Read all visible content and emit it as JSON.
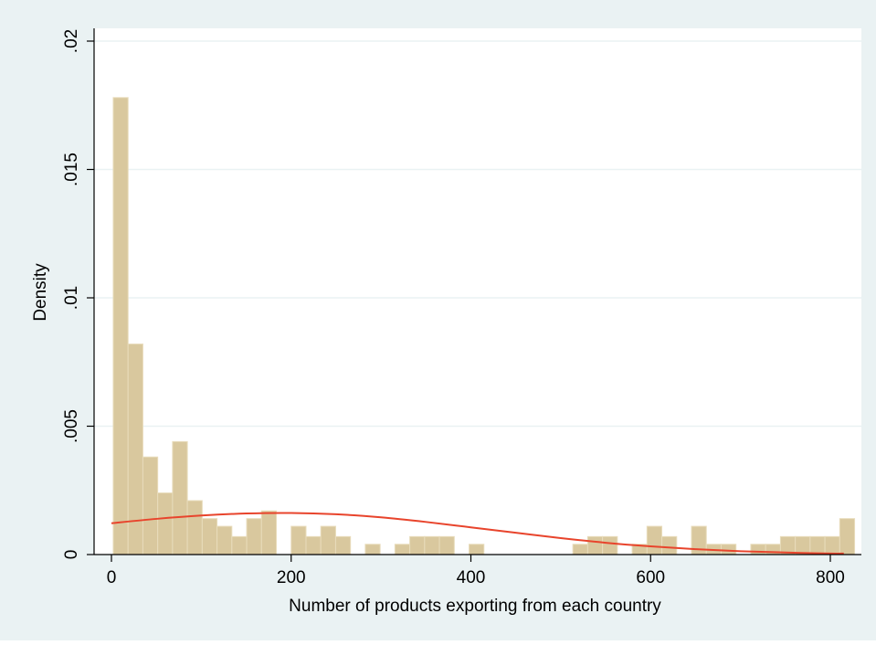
{
  "chart_data": {
    "type": "bar",
    "xlabel": "Number of products exporting from each country",
    "ylabel": "Density",
    "xlim": [
      0,
      820
    ],
    "ylim": [
      0,
      0.02
    ],
    "x_ticks": [
      {
        "value": 0,
        "label": "0"
      },
      {
        "value": 200,
        "label": "200"
      },
      {
        "value": 400,
        "label": "400"
      },
      {
        "value": 600,
        "label": "600"
      },
      {
        "value": 800,
        "label": "800"
      }
    ],
    "y_ticks": [
      {
        "value": 0,
        "label": "0"
      },
      {
        "value": 0.005,
        "label": ".005"
      },
      {
        "value": 0.01,
        "label": ".01"
      },
      {
        "value": 0.015,
        "label": ".015"
      },
      {
        "value": 0.02,
        "label": ".02"
      }
    ],
    "bin_width": 16.5,
    "bin_start": 2,
    "histogram_density": [
      0.0178,
      0.0082,
      0.0038,
      0.0024,
      0.0044,
      0.0021,
      0.0014,
      0.0011,
      0.0007,
      0.0014,
      0.0017,
      0,
      0.0011,
      0.0007,
      0.0011,
      0.0007,
      0,
      0.0004,
      0,
      0.0004,
      0.0007,
      0.0007,
      0.0007,
      0,
      0.0004,
      0,
      0,
      0,
      0,
      0,
      0,
      0.0004,
      0.0007,
      0.0007,
      0,
      0.0004,
      0.0011,
      0.0007,
      0,
      0.0011,
      0.0004,
      0.0004,
      0,
      0.0004,
      0.0004,
      0.0007,
      0.0007,
      0.0007,
      0.0007,
      0.0014
    ],
    "normal_curve": {
      "x": [
        0,
        50,
        100,
        150,
        200,
        250,
        300,
        350,
        400,
        450,
        500,
        550,
        600,
        650,
        700,
        750,
        800,
        815
      ],
      "y": [
        0.00122,
        0.00139,
        0.00152,
        0.0016,
        0.00162,
        0.00157,
        0.00145,
        0.00127,
        0.00106,
        0.00085,
        0.00064,
        0.00046,
        0.00032,
        0.00021,
        0.00013,
        8e-05,
        4e-05,
        4e-05
      ]
    },
    "grid": true,
    "colors": {
      "background": "#eaf2f3",
      "plot_area": "#ffffff",
      "bar_fill": "#d9c89e",
      "bar_edge": "#e8dcbb",
      "curve": "#e8442c",
      "gridline": "#eaf2f3"
    }
  }
}
